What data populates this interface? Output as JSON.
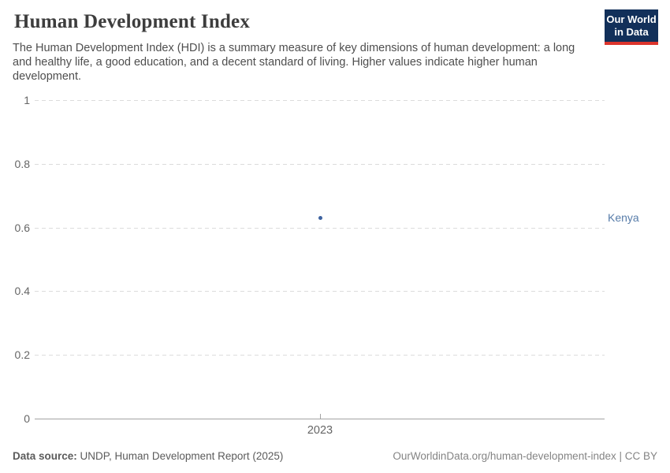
{
  "header": {
    "title": "Human Development Index",
    "subtitle": "The Human Development Index (HDI) is a summary measure of key dimensions of human development: a long and healthy life, a good education, and a decent standard of living. Higher values indicate higher human development."
  },
  "logo": {
    "line1": "Our World",
    "line2": "in Data",
    "bg_color": "#12305a",
    "bar_color": "#dc352d"
  },
  "chart_data": {
    "type": "scatter",
    "title": "Human Development Index",
    "x": [
      2023
    ],
    "series": [
      {
        "name": "Kenya",
        "values": [
          0.63
        ],
        "color": "#3d62a0"
      }
    ],
    "xlabel": "",
    "ylabel": "",
    "ylim": [
      0,
      1
    ],
    "yticks": [
      0,
      0.2,
      0.4,
      0.6,
      0.8,
      1
    ],
    "ytick_labels": [
      "0",
      "0.2",
      "0.4",
      "0.6",
      "0.8",
      "1"
    ],
    "xticks": [
      2023
    ],
    "xtick_labels": [
      "2023"
    ],
    "grid": "horizontal-dashed",
    "legend_position": "right-entity-label",
    "entity_label": "Kenya",
    "entity_label_color": "#577ca9",
    "gridline_color": "#dcdcdc",
    "axis_color": "#a3a3a3",
    "tick_label_color": "#666666"
  },
  "footer": {
    "data_source_label": "Data source:",
    "data_source_value": " UNDP, Human Development Report (2025)",
    "attribution": "OurWorldinData.org/human-development-index | CC BY"
  }
}
